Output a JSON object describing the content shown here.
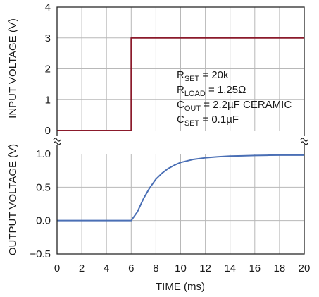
{
  "chart_data": {
    "type": "line",
    "grid": true,
    "xlabel": "TIME (ms)",
    "x_ticks": [
      "0",
      "2",
      "4",
      "6",
      "8",
      "10",
      "12",
      "14",
      "16",
      "18",
      "20"
    ],
    "xlim": [
      0,
      20
    ],
    "panels": [
      {
        "id": "input",
        "ylabel": "INPUT VOLTAGE (V)",
        "ylim": [
          0,
          4
        ],
        "y_ticks": [
          "0",
          "1",
          "2",
          "3",
          "4"
        ],
        "series": [
          {
            "color": "#8b1a2b",
            "x": [
              0,
              6,
              6,
              20
            ],
            "y": [
              0,
              0,
              3,
              3
            ]
          }
        ]
      },
      {
        "id": "output",
        "ylabel": "OUTPUT VOLTAGE (V)",
        "ylim": [
          -0.5,
          1.0
        ],
        "y_ticks": [
          "1.0",
          "0.5",
          "0.0",
          "−0.5"
        ],
        "series": [
          {
            "color": "#4a6fb5",
            "x": [
              0,
              6,
              6.5,
              7,
              7.5,
              8,
              8.5,
              9,
              9.5,
              10,
              11,
              12,
              13,
              14,
              15,
              16,
              17,
              18,
              19,
              20
            ],
            "y": [
              0,
              0,
              0.13,
              0.33,
              0.49,
              0.62,
              0.71,
              0.78,
              0.83,
              0.87,
              0.915,
              0.94,
              0.955,
              0.965,
              0.97,
              0.975,
              0.978,
              0.98,
              0.98,
              0.98
            ]
          }
        ]
      }
    ],
    "annotation": {
      "lines": [
        {
          "base": "R",
          "sub": "SET",
          "rest": " = 20k"
        },
        {
          "base": "R",
          "sub": "LOAD",
          "rest": " = 1.25Ω"
        },
        {
          "base": "C",
          "sub": "OUT",
          "rest": " = 2.2µF CERAMIC"
        },
        {
          "base": "C",
          "sub": "SET",
          "rest": " = 0.1µF"
        }
      ]
    }
  }
}
